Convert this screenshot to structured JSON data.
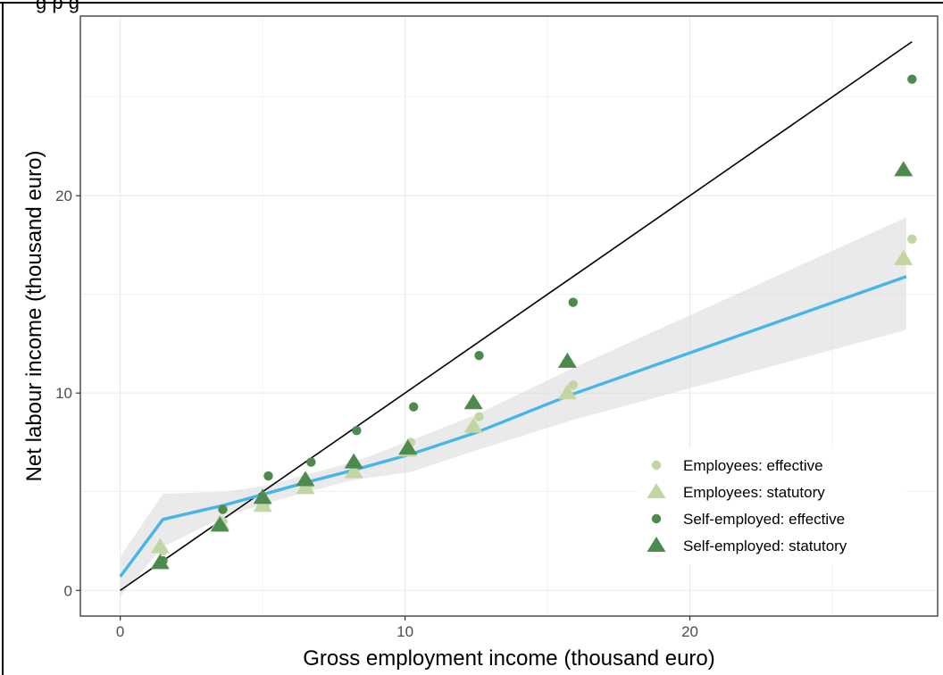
{
  "header": {
    "cropped_text": "g p      g"
  },
  "chart_data": {
    "type": "scatter",
    "title": "",
    "xlabel": "Gross employment income (thousand euro)",
    "ylabel": "Net labour income (thousand euro)",
    "xlim": [
      -1.4,
      28.7
    ],
    "ylim": [
      -1.3,
      29.1
    ],
    "x_ticks": [
      0,
      10,
      20
    ],
    "y_ticks": [
      0,
      10,
      20
    ],
    "grid": true,
    "legend_position": "bottom-right",
    "series": [
      {
        "name": "Employees: effective",
        "marker": "circle",
        "color": "#c2d6a4",
        "x": [
          1.5,
          3.6,
          5.1,
          6.6,
          8.2,
          10.2,
          12.6,
          15.9,
          27.8
        ],
        "y": [
          2.0,
          3.5,
          4.4,
          5.3,
          6.0,
          7.5,
          8.8,
          10.4,
          17.8
        ]
      },
      {
        "name": "Employees: statutory",
        "marker": "triangle",
        "color": "#c2d6a4",
        "x": [
          1.4,
          3.5,
          5.0,
          6.5,
          8.2,
          10.1,
          12.4,
          15.7,
          27.5
        ],
        "y": [
          2.2,
          3.4,
          4.3,
          5.2,
          6.0,
          7.1,
          8.3,
          10.0,
          16.8
        ]
      },
      {
        "name": "Self-employed: effective",
        "marker": "circle",
        "color": "#4d8a4d",
        "x": [
          1.5,
          3.6,
          5.2,
          6.7,
          8.3,
          10.3,
          12.6,
          15.9,
          27.8
        ],
        "y": [
          1.5,
          4.1,
          5.8,
          6.5,
          8.1,
          9.3,
          11.9,
          14.6,
          25.9
        ]
      },
      {
        "name": "Self-employed: statutory",
        "marker": "triangle",
        "color": "#4d8a4d",
        "x": [
          1.4,
          3.5,
          5.0,
          6.5,
          8.2,
          10.1,
          12.4,
          15.7,
          27.5
        ],
        "y": [
          1.4,
          3.3,
          4.7,
          5.6,
          6.5,
          7.2,
          9.5,
          11.6,
          21.3
        ]
      }
    ],
    "smooth_fit": {
      "color": "#45b6e8",
      "x": [
        0,
        1.5,
        3.6,
        5.1,
        6.6,
        8.2,
        10.2,
        12.5,
        15.8,
        27.6
      ],
      "y": [
        0.7,
        3.6,
        4.3,
        4.9,
        5.5,
        6.1,
        6.9,
        8.0,
        9.9,
        15.9
      ],
      "ci_lower": [
        -0.3,
        2.2,
        3.7,
        4.4,
        5.0,
        5.6,
        6.0,
        7.1,
        8.6,
        13.2
      ],
      "ci_upper": [
        1.7,
        4.9,
        5.0,
        5.3,
        5.9,
        6.5,
        7.6,
        8.9,
        11.2,
        18.9
      ]
    },
    "reference_line": {
      "color": "#000000",
      "x": [
        0,
        27.8
      ],
      "y": [
        0,
        27.8
      ]
    }
  }
}
